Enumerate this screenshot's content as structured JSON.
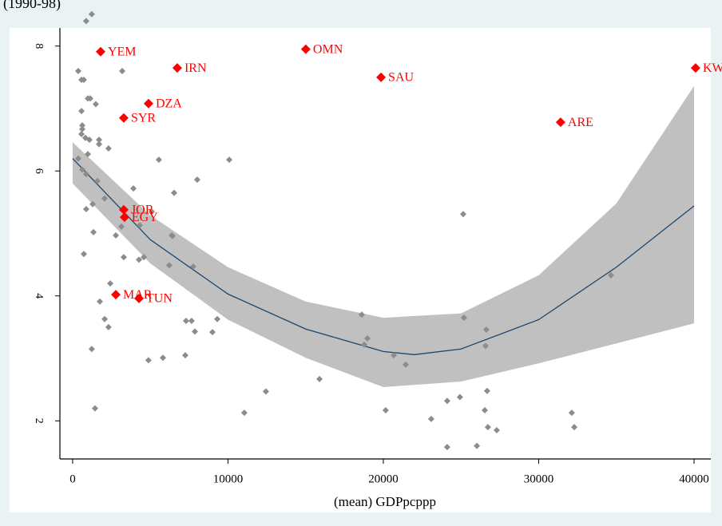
{
  "chart_data": {
    "type": "scatter",
    "subtitle": "(1990-98)",
    "x_label": "(mean) GDPpcppp",
    "xlim": [
      -820,
      41080
    ],
    "xticks": [
      0,
      10000,
      20000,
      30000,
      40000
    ],
    "ylim": [
      1.39,
      8.29
    ],
    "yticks": [
      2,
      4,
      6,
      8
    ],
    "points": {
      "color": "#8c8c8c",
      "x": [
        1230,
        870,
        360,
        570,
        720,
        3190,
        980,
        1130,
        1490,
        570,
        620,
        620,
        570,
        820,
        1080,
        1700,
        1700,
        2310,
        360,
        620,
        980,
        1590,
        870,
        5550,
        10080,
        8020,
        6530,
        3910,
        2060,
        870,
        1290,
        5090,
        4320,
        6380,
        6430,
        1340,
        2780,
        3140,
        4580,
        4270,
        3290,
        720,
        6220,
        7760,
        2420,
        1750,
        2060,
        2310,
        7300,
        7660,
        9310,
        7870,
        9000,
        1230,
        7250,
        5810,
        4880,
        25140,
        34650,
        18610,
        18970,
        18770,
        25190,
        26630,
        26580,
        20670,
        21440,
        15890,
        12440,
        11050,
        1440,
        20150,
        23080,
        24110,
        24930,
        26680,
        26530,
        26730,
        27300,
        24110,
        26020,
        32130,
        32290
      ],
      "y": [
        8.51,
        8.4,
        7.6,
        7.46,
        7.46,
        7.6,
        7.16,
        7.16,
        7.07,
        6.96,
        6.73,
        6.67,
        6.59,
        6.53,
        6.5,
        6.5,
        6.43,
        6.36,
        6.2,
        6.02,
        6.27,
        5.84,
        5.95,
        6.18,
        6.18,
        5.86,
        5.65,
        5.72,
        5.56,
        5.39,
        5.47,
        5.35,
        5.13,
        4.97,
        4.96,
        5.02,
        4.97,
        5.11,
        4.62,
        4.58,
        4.62,
        4.67,
        4.49,
        4.47,
        4.2,
        3.91,
        3.63,
        3.5,
        3.6,
        3.6,
        3.63,
        3.43,
        3.42,
        3.15,
        3.05,
        3.01,
        2.97,
        5.31,
        4.33,
        3.7,
        3.32,
        3.22,
        3.65,
        3.46,
        3.2,
        3.05,
        2.9,
        2.67,
        2.47,
        2.13,
        2.2,
        2.17,
        2.03,
        2.32,
        2.38,
        2.48,
        2.17,
        1.9,
        1.85,
        1.58,
        1.6,
        2.13,
        1.9
      ]
    },
    "labeled": {
      "color": "#ff0000",
      "x": [
        1800,
        6735,
        15010,
        19850,
        40100,
        4885,
        3290,
        31410,
        3290,
        3340,
        2780,
        4270
      ],
      "y": [
        7.91,
        7.65,
        7.95,
        7.5,
        7.65,
        7.08,
        6.85,
        6.78,
        5.38,
        5.26,
        4.02,
        3.96
      ],
      "labels": [
        "YEM",
        "IRN",
        "OMN",
        "SAU",
        "KW",
        "DZA",
        "SYR",
        "ARE",
        "JOR",
        "EGY",
        "MAR",
        "TUN"
      ]
    },
    "ci": {
      "color": "#c0c0c0",
      "x": [
        0,
        5000,
        10000,
        15000,
        20000,
        25000,
        30000,
        35000,
        40000
      ],
      "upper": [
        6.46,
        5.29,
        4.46,
        3.91,
        3.65,
        3.72,
        4.33,
        5.48,
        7.36
      ],
      "lower": [
        5.8,
        4.52,
        3.62,
        3.01,
        2.54,
        2.63,
        2.92,
        3.24,
        3.56
      ]
    },
    "fit": {
      "color": "#1a476f",
      "x": [
        0,
        5000,
        10000,
        15000,
        20000,
        22000,
        25000,
        30000,
        35000,
        40000
      ],
      "y": [
        6.2,
        4.9,
        4.03,
        3.47,
        3.11,
        3.06,
        3.15,
        3.62,
        4.46,
        5.44
      ]
    }
  }
}
